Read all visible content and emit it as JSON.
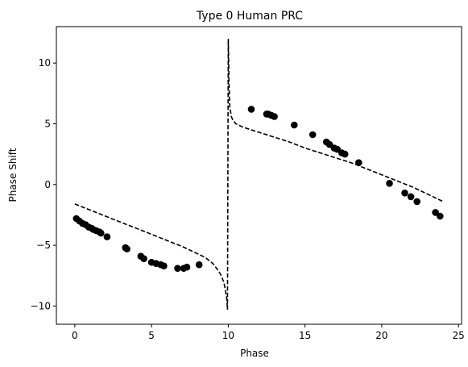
{
  "chart_data": {
    "type": "scatter",
    "title": "Type 0 Human PRC",
    "xlabel": "Phase",
    "ylabel": "Phase Shift",
    "xlim": [
      -1.2,
      25.2
    ],
    "ylim": [
      -11.5,
      13.0
    ],
    "xticks": [
      0,
      5,
      10,
      15,
      20,
      25
    ],
    "yticks": [
      -10,
      -5,
      0,
      5,
      10
    ],
    "grid": false,
    "series": [
      {
        "kind": "scatter",
        "color": "#000000",
        "x": [
          0.1,
          0.3,
          0.5,
          0.7,
          0.9,
          1.1,
          1.2,
          1.4,
          1.6,
          1.7,
          2.1,
          3.3,
          3.4,
          4.3,
          4.5,
          5.0,
          5.3,
          5.6,
          5.8,
          6.7,
          7.1,
          7.3,
          8.1,
          11.5,
          12.5,
          12.6,
          12.8,
          13.0,
          14.3,
          15.5,
          16.4,
          16.6,
          16.9,
          17.1,
          17.4,
          17.6,
          18.5,
          20.5,
          21.5,
          21.9,
          22.3,
          23.5,
          23.8
        ],
        "y": [
          -2.8,
          -3.0,
          -3.2,
          -3.3,
          -3.5,
          -3.6,
          -3.7,
          -3.8,
          -3.9,
          -4.0,
          -4.3,
          -5.2,
          -5.3,
          -5.9,
          -6.1,
          -6.4,
          -6.5,
          -6.6,
          -6.7,
          -6.9,
          -6.9,
          -6.8,
          -6.6,
          6.2,
          5.8,
          5.8,
          5.7,
          5.6,
          4.9,
          4.1,
          3.5,
          3.3,
          3.0,
          2.9,
          2.6,
          2.5,
          1.8,
          0.1,
          -0.7,
          -1.0,
          -1.4,
          -2.3,
          -2.6
        ]
      },
      {
        "kind": "line",
        "style": "dashed",
        "color": "#000000",
        "x": [
          0,
          1,
          2,
          3,
          4,
          5,
          6,
          7,
          8,
          8.5,
          9.0,
          9.3,
          9.5,
          9.7,
          9.8,
          9.9,
          9.95,
          10.0,
          10.05,
          10.1,
          10.2,
          10.3,
          10.5,
          11,
          12,
          13,
          14,
          15,
          16,
          17,
          18,
          19,
          20,
          21,
          22,
          23,
          24
        ],
        "y": [
          -1.6,
          -2.1,
          -2.6,
          -3.1,
          -3.6,
          -4.1,
          -4.6,
          -5.1,
          -5.7,
          -6.0,
          -6.5,
          -7.0,
          -7.4,
          -8.0,
          -8.6,
          -9.4,
          -10.3,
          12.0,
          8.3,
          6.4,
          5.6,
          5.3,
          5.0,
          4.7,
          4.3,
          3.9,
          3.5,
          3.0,
          2.6,
          2.2,
          1.8,
          1.3,
          0.8,
          0.3,
          -0.2,
          -0.8,
          -1.4
        ]
      }
    ]
  }
}
